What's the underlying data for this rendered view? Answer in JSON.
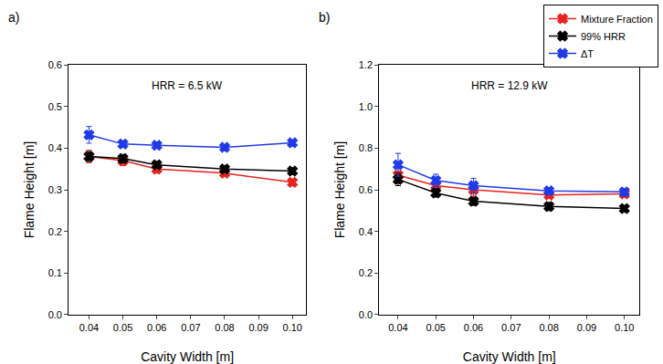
{
  "chart_data": [
    {
      "type": "line",
      "title": "HRR = 6.5 kW",
      "annotations": [
        "a)"
      ],
      "x_label": "Cavity Width [m]",
      "y_label": "Flame Height [m]",
      "x": [
        0.04,
        0.05,
        0.06,
        0.08,
        0.1
      ],
      "xlim": [
        0.034,
        0.104
      ],
      "xticks": [
        0.04,
        0.05,
        0.06,
        0.07,
        0.08,
        0.09,
        {
          "value": 0.1,
          "label": "0.10"
        }
      ],
      "ylim": [
        0,
        0.6
      ],
      "yticks": [
        {
          "value": 0,
          "label": "0.0"
        },
        0.1,
        0.2,
        0.3,
        0.4,
        0.5,
        0.6
      ],
      "marker": "x",
      "line_style": "solid",
      "legend": "upper right",
      "series": [
        {
          "name": "Mixture Fraction",
          "color": "#e8221d",
          "values": [
            0.38,
            0.37,
            0.35,
            0.34,
            0.318
          ],
          "error": [
            0.015,
            0.012,
            0.01,
            0.008,
            0.008
          ]
        },
        {
          "name": "99% HRR",
          "color": "#000000",
          "values": [
            0.38,
            0.375,
            0.36,
            0.35,
            0.345
          ],
          "error": [
            0.012,
            0.01,
            0.008,
            0.008,
            0.008
          ]
        },
        {
          "name": "ΔT",
          "color": "#1f3be8",
          "values": [
            0.432,
            0.41,
            0.407,
            0.402,
            0.413
          ],
          "error": [
            0.02,
            0.008,
            0.008,
            0.006,
            0.006
          ]
        }
      ]
    },
    {
      "type": "line",
      "title": "HRR = 12.9 kW",
      "annotations": [
        "b)"
      ],
      "x_label": "Cavity Width [m]",
      "y_label": "Flame Height [m]",
      "x": [
        0.04,
        0.05,
        0.06,
        0.08,
        0.1
      ],
      "xlim": [
        0.035,
        0.104
      ],
      "xticks": [
        0.04,
        0.05,
        0.06,
        0.07,
        0.08,
        0.09,
        {
          "value": 0.1,
          "label": "0.10"
        }
      ],
      "ylim": [
        0,
        1.2
      ],
      "yticks": [
        {
          "value": 0,
          "label": "0.0"
        },
        0.2,
        0.4,
        0.6,
        0.8,
        {
          "value": 1,
          "label": "1.0"
        },
        1.2
      ],
      "marker": "x",
      "line_style": "solid",
      "series": [
        {
          "name": "Mixture Fraction",
          "color": "#e8221d",
          "values": [
            0.67,
            0.62,
            0.6,
            0.575,
            0.58
          ],
          "error": [
            0.04,
            0.03,
            0.03,
            0.015,
            0.015
          ]
        },
        {
          "name": "99% HRR",
          "color": "#000000",
          "values": [
            0.65,
            0.585,
            0.545,
            0.52,
            0.51
          ],
          "error": [
            0.03,
            0.02,
            0.02,
            0.02,
            0.015
          ]
        },
        {
          "name": "ΔT",
          "color": "#1f3be8",
          "values": [
            0.72,
            0.645,
            0.62,
            0.595,
            0.59
          ],
          "error": [
            0.055,
            0.03,
            0.035,
            0.015,
            0.015
          ]
        }
      ]
    }
  ]
}
